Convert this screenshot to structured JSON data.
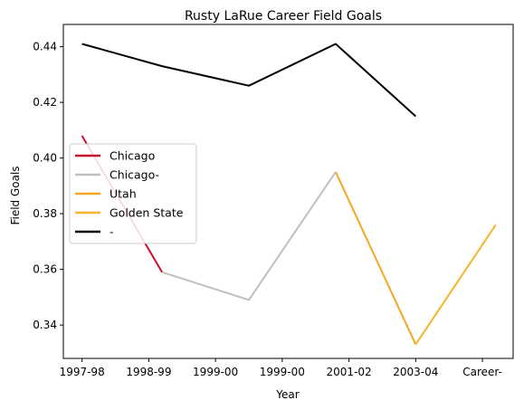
{
  "chart_data": {
    "type": "line",
    "title": "Rusty LaRue Career Field Goals",
    "xlabel": "Year",
    "ylabel": "Field Goals",
    "x_tick_labels": [
      "1997-98",
      "1998-99",
      "1999-00",
      "1999-00",
      "2001-02",
      "2003-04",
      "Career-"
    ],
    "y_ticks": [
      "0.34",
      "0.36",
      "0.38",
      "0.40",
      "0.42",
      "0.44"
    ],
    "ylim": [
      0.328,
      0.448
    ],
    "legend_position": "center-left",
    "series": [
      {
        "name": "Chicago",
        "color": "#c8102e",
        "points": [
          [
            0,
            0.408
          ],
          [
            1.2,
            0.359
          ]
        ]
      },
      {
        "name": "Chicago-",
        "color": "#bfbfbf",
        "points": [
          [
            1.2,
            0.359
          ],
          [
            2.5,
            0.349
          ],
          [
            3.8,
            0.395
          ]
        ]
      },
      {
        "name": "Utah",
        "color": "#f5a623",
        "points": [
          [
            3.8,
            0.395
          ],
          [
            5,
            0.333
          ]
        ]
      },
      {
        "name": "Golden State",
        "color": "#f3b52e",
        "points": [
          [
            5,
            0.333
          ],
          [
            6.2,
            0.376
          ]
        ]
      },
      {
        "name": "-",
        "color": "#000000",
        "points": [
          [
            0,
            0.441
          ],
          [
            1.2,
            0.433
          ],
          [
            2.5,
            0.426
          ],
          [
            3.8,
            0.441
          ],
          [
            5,
            0.415
          ]
        ]
      }
    ]
  }
}
